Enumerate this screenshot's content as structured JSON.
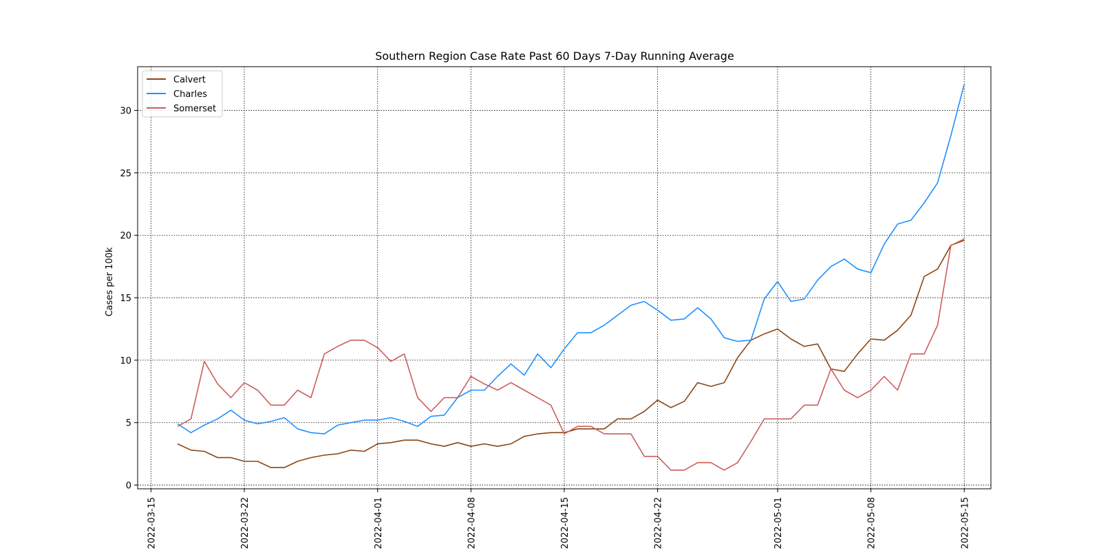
{
  "chart_data": {
    "type": "line",
    "title": "Southern Region Case Rate  Past 60 Days 7-Day Running Average",
    "xlabel": "",
    "ylabel": "Cases per 100k",
    "grid": true,
    "legend_position": "top-left",
    "x_ticks": [
      "2022-03-15",
      "2022-03-22",
      "2022-04-01",
      "2022-04-08",
      "2022-04-15",
      "2022-04-22",
      "2022-05-01",
      "2022-05-08",
      "2022-05-15"
    ],
    "y_ticks": [
      0,
      5,
      10,
      15,
      20,
      25,
      30
    ],
    "xlim": [
      "2022-03-14",
      "2022-05-17"
    ],
    "ylim": [
      -0.3,
      33.5
    ],
    "dates": [
      "2022-03-17",
      "2022-03-18",
      "2022-03-19",
      "2022-03-20",
      "2022-03-21",
      "2022-03-22",
      "2022-03-23",
      "2022-03-24",
      "2022-03-25",
      "2022-03-26",
      "2022-03-27",
      "2022-03-28",
      "2022-03-29",
      "2022-03-30",
      "2022-03-31",
      "2022-04-01",
      "2022-04-02",
      "2022-04-03",
      "2022-04-04",
      "2022-04-05",
      "2022-04-06",
      "2022-04-07",
      "2022-04-08",
      "2022-04-09",
      "2022-04-10",
      "2022-04-11",
      "2022-04-12",
      "2022-04-13",
      "2022-04-14",
      "2022-04-15",
      "2022-04-16",
      "2022-04-17",
      "2022-04-18",
      "2022-04-19",
      "2022-04-20",
      "2022-04-21",
      "2022-04-22",
      "2022-04-23",
      "2022-04-24",
      "2022-04-25",
      "2022-04-26",
      "2022-04-27",
      "2022-04-28",
      "2022-04-29",
      "2022-04-30",
      "2022-05-01",
      "2022-05-02",
      "2022-05-03",
      "2022-05-04",
      "2022-05-05",
      "2022-05-06",
      "2022-05-07",
      "2022-05-08",
      "2022-05-09",
      "2022-05-10",
      "2022-05-11",
      "2022-05-12",
      "2022-05-13",
      "2022-05-14",
      "2022-05-15"
    ],
    "series": [
      {
        "name": "Calvert",
        "color": "#8b4513",
        "values": [
          3.3,
          2.8,
          2.7,
          2.2,
          2.2,
          1.9,
          1.9,
          1.4,
          1.4,
          1.9,
          2.2,
          2.4,
          2.5,
          2.8,
          2.7,
          3.3,
          3.4,
          3.6,
          3.6,
          3.3,
          3.1,
          3.4,
          3.1,
          3.3,
          3.1,
          3.3,
          3.9,
          4.1,
          4.2,
          4.2,
          4.5,
          4.5,
          4.5,
          5.3,
          5.3,
          5.9,
          6.8,
          6.2,
          6.7,
          8.2,
          7.9,
          8.2,
          10.2,
          11.6,
          12.1,
          12.5,
          11.7,
          11.1,
          11.3,
          9.3,
          9.1,
          10.5,
          11.7,
          11.6,
          12.4,
          13.6,
          16.7,
          17.3,
          19.2,
          19.6
        ]
      },
      {
        "name": "Charles",
        "color": "#1e90ff",
        "values": [
          4.9,
          4.2,
          4.8,
          5.3,
          6.0,
          5.2,
          4.9,
          5.1,
          5.4,
          4.5,
          4.2,
          4.1,
          4.8,
          5.0,
          5.2,
          5.2,
          5.4,
          5.1,
          4.7,
          5.5,
          5.6,
          7.0,
          7.6,
          7.6,
          8.7,
          9.7,
          8.8,
          10.5,
          9.4,
          10.9,
          12.2,
          12.2,
          12.8,
          13.6,
          14.4,
          14.7,
          14.0,
          13.2,
          13.3,
          14.2,
          13.3,
          11.8,
          11.5,
          11.6,
          14.9,
          16.3,
          14.7,
          14.9,
          16.4,
          17.5,
          18.1,
          17.3,
          17.0,
          19.3,
          20.9,
          21.2,
          22.6,
          24.2,
          28.0,
          32.1
        ]
      },
      {
        "name": "Somerset",
        "color": "#cd5c5c",
        "values": [
          4.7,
          5.3,
          9.9,
          8.1,
          7.0,
          8.2,
          7.6,
          6.4,
          6.4,
          7.6,
          7.0,
          10.5,
          11.1,
          11.6,
          11.6,
          11.0,
          9.9,
          10.5,
          7.0,
          5.9,
          7.0,
          7.0,
          8.7,
          8.1,
          7.6,
          8.2,
          7.6,
          7.0,
          6.4,
          4.1,
          4.7,
          4.7,
          4.1,
          4.1,
          4.1,
          2.3,
          2.3,
          1.2,
          1.2,
          1.8,
          1.8,
          1.2,
          1.8,
          3.5,
          5.3,
          5.3,
          5.3,
          6.4,
          6.4,
          9.3,
          7.6,
          7.0,
          7.6,
          8.7,
          7.6,
          10.5,
          10.5,
          12.8,
          19.2,
          19.7
        ]
      }
    ]
  }
}
